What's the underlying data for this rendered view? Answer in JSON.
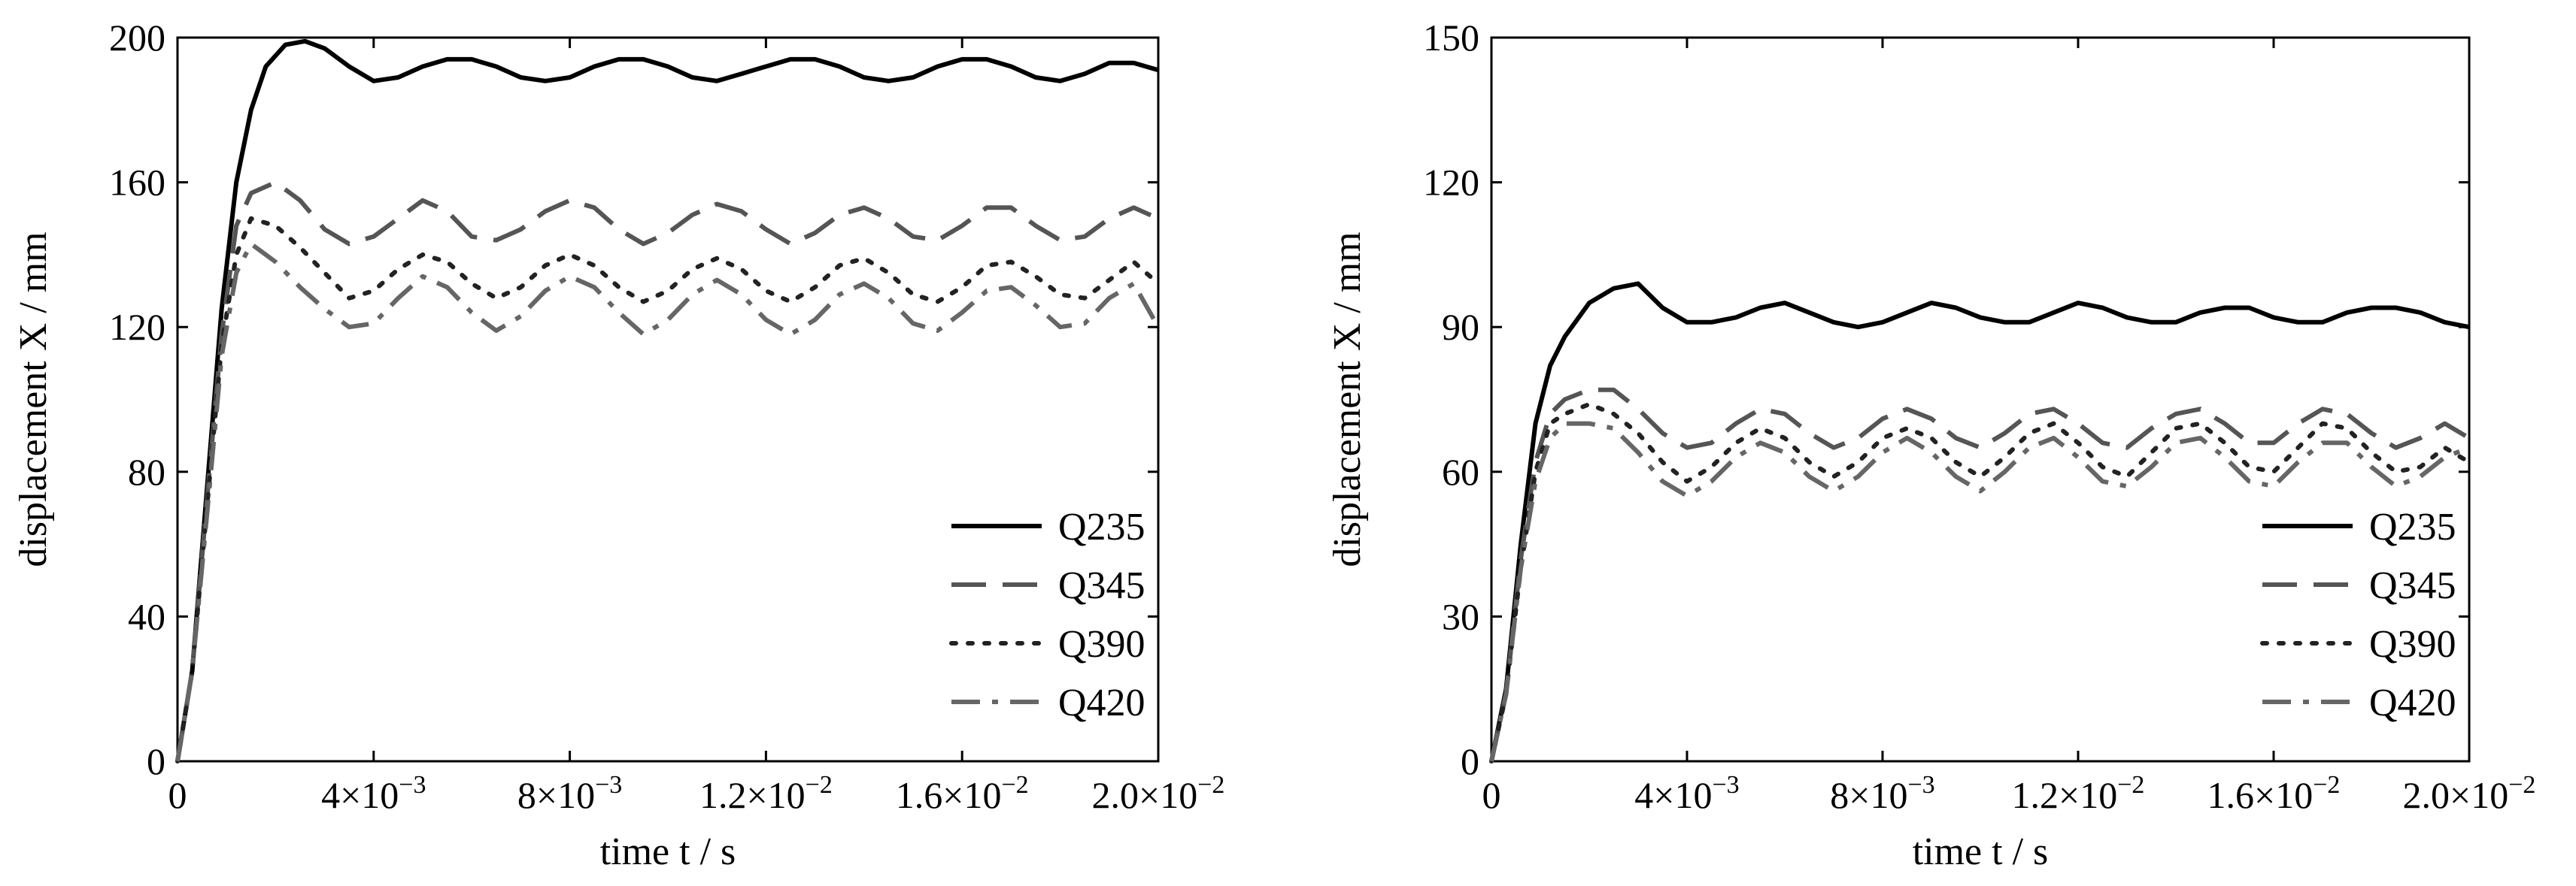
{
  "chart_data": [
    {
      "type": "line",
      "xlabel": "time t / s",
      "ylabel": "displacement X / mm",
      "xlim": [
        0,
        0.02
      ],
      "ylim": [
        0,
        200
      ],
      "x_ticks": [
        0,
        0.004,
        0.008,
        0.012,
        0.016,
        0.02
      ],
      "x_tick_labels": [
        "0",
        "4×10⁻³",
        "8×10⁻³",
        "1.2×10⁻²",
        "1.6×10⁻²",
        "2.0×10⁻²"
      ],
      "y_ticks": [
        0,
        40,
        80,
        120,
        160,
        200
      ],
      "y_tick_labels": [
        "0",
        "40",
        "80",
        "120",
        "160",
        "200"
      ],
      "grid": false,
      "legend_position": "bottom-right",
      "series": [
        {
          "name": "Q235",
          "color": "#000000",
          "style": "solid",
          "x": [
            0,
            0.0003,
            0.0006,
            0.0009,
            0.0012,
            0.0015,
            0.0018,
            0.0022,
            0.0026,
            0.003,
            0.0035,
            0.004,
            0.0045,
            0.005,
            0.0055,
            0.006,
            0.0065,
            0.007,
            0.0075,
            0.008,
            0.0085,
            0.009,
            0.0095,
            0.01,
            0.0105,
            0.011,
            0.0115,
            0.012,
            0.0125,
            0.013,
            0.0135,
            0.014,
            0.0145,
            0.015,
            0.0155,
            0.016,
            0.0165,
            0.017,
            0.0175,
            0.018,
            0.0185,
            0.019,
            0.0195,
            0.02
          ],
          "y": [
            0,
            25,
            75,
            125,
            160,
            180,
            192,
            198,
            199,
            197,
            192,
            188,
            189,
            192,
            194,
            194,
            192,
            189,
            188,
            189,
            192,
            194,
            194,
            192,
            189,
            188,
            190,
            192,
            194,
            194,
            192,
            189,
            188,
            189,
            192,
            194,
            194,
            192,
            189,
            188,
            190,
            193,
            193,
            191
          ]
        },
        {
          "name": "Q345",
          "color": "#555555",
          "style": "dashed",
          "x": [
            0,
            0.0003,
            0.0006,
            0.0009,
            0.0012,
            0.0015,
            0.002,
            0.0025,
            0.003,
            0.0035,
            0.004,
            0.0045,
            0.005,
            0.0055,
            0.006,
            0.0065,
            0.007,
            0.0075,
            0.008,
            0.0085,
            0.009,
            0.0095,
            0.01,
            0.0105,
            0.011,
            0.0115,
            0.012,
            0.0125,
            0.013,
            0.0135,
            0.014,
            0.0145,
            0.015,
            0.0155,
            0.016,
            0.0165,
            0.017,
            0.0175,
            0.018,
            0.0185,
            0.019,
            0.0195,
            0.02
          ],
          "y": [
            0,
            25,
            72,
            118,
            148,
            157,
            160,
            155,
            147,
            143,
            145,
            150,
            155,
            152,
            145,
            144,
            147,
            152,
            155,
            153,
            147,
            143,
            146,
            151,
            154,
            152,
            147,
            143,
            146,
            151,
            153,
            150,
            145,
            144,
            148,
            153,
            153,
            148,
            144,
            145,
            150,
            153,
            150
          ]
        },
        {
          "name": "Q390",
          "color": "#222222",
          "style": "dotted",
          "x": [
            0,
            0.0003,
            0.0006,
            0.0009,
            0.0012,
            0.0015,
            0.002,
            0.0025,
            0.003,
            0.0035,
            0.004,
            0.0045,
            0.005,
            0.0055,
            0.006,
            0.0065,
            0.007,
            0.0075,
            0.008,
            0.0085,
            0.009,
            0.0095,
            0.01,
            0.0105,
            0.011,
            0.0115,
            0.012,
            0.0125,
            0.013,
            0.0135,
            0.014,
            0.0145,
            0.015,
            0.0155,
            0.016,
            0.0165,
            0.017,
            0.0175,
            0.018,
            0.0185,
            0.019,
            0.0195,
            0.02
          ],
          "y": [
            0,
            25,
            70,
            115,
            140,
            150,
            148,
            142,
            135,
            128,
            130,
            136,
            140,
            138,
            132,
            128,
            131,
            137,
            140,
            137,
            131,
            127,
            130,
            136,
            139,
            136,
            130,
            127,
            131,
            137,
            139,
            135,
            129,
            127,
            131,
            137,
            138,
            134,
            129,
            128,
            133,
            138,
            132
          ]
        },
        {
          "name": "Q420",
          "color": "#666666",
          "style": "dashdot",
          "x": [
            0,
            0.0003,
            0.0006,
            0.0009,
            0.0012,
            0.0015,
            0.002,
            0.0025,
            0.003,
            0.0035,
            0.004,
            0.0045,
            0.005,
            0.0055,
            0.006,
            0.0065,
            0.007,
            0.0075,
            0.008,
            0.0085,
            0.009,
            0.0095,
            0.01,
            0.0105,
            0.011,
            0.0115,
            0.012,
            0.0125,
            0.013,
            0.0135,
            0.014,
            0.0145,
            0.015,
            0.0155,
            0.016,
            0.0165,
            0.017,
            0.0175,
            0.018,
            0.0185,
            0.019,
            0.0195,
            0.02
          ],
          "y": [
            0,
            25,
            68,
            112,
            135,
            143,
            138,
            131,
            125,
            120,
            121,
            128,
            134,
            131,
            124,
            119,
            123,
            130,
            134,
            131,
            124,
            118,
            122,
            129,
            133,
            129,
            122,
            118,
            122,
            129,
            132,
            128,
            121,
            119,
            124,
            130,
            131,
            126,
            120,
            121,
            128,
            132,
            120
          ]
        }
      ]
    },
    {
      "type": "line",
      "xlabel": "time t / s",
      "ylabel": "displacement X / mm",
      "xlim": [
        0,
        0.02
      ],
      "ylim": [
        0,
        150
      ],
      "x_ticks": [
        0,
        0.004,
        0.008,
        0.012,
        0.016,
        0.02
      ],
      "x_tick_labels": [
        "0",
        "4×10⁻³",
        "8×10⁻³",
        "1.2×10⁻²",
        "1.6×10⁻²",
        "2.0×10⁻²"
      ],
      "y_ticks": [
        0,
        30,
        60,
        90,
        120,
        150
      ],
      "y_tick_labels": [
        "0",
        "30",
        "60",
        "90",
        "120",
        "150"
      ],
      "grid": false,
      "legend_position": "bottom-right",
      "series": [
        {
          "name": "Q235",
          "color": "#000000",
          "style": "solid",
          "x": [
            0,
            0.0003,
            0.0006,
            0.0009,
            0.0012,
            0.0015,
            0.002,
            0.0025,
            0.003,
            0.0035,
            0.004,
            0.0045,
            0.005,
            0.0055,
            0.006,
            0.0065,
            0.007,
            0.0075,
            0.008,
            0.0085,
            0.009,
            0.0095,
            0.01,
            0.0105,
            0.011,
            0.0115,
            0.012,
            0.0125,
            0.013,
            0.0135,
            0.014,
            0.0145,
            0.015,
            0.0155,
            0.016,
            0.0165,
            0.017,
            0.0175,
            0.018,
            0.0185,
            0.019,
            0.0195,
            0.02
          ],
          "y": [
            0,
            15,
            45,
            70,
            82,
            88,
            95,
            98,
            99,
            94,
            91,
            91,
            92,
            94,
            95,
            93,
            91,
            90,
            91,
            93,
            95,
            94,
            92,
            91,
            91,
            93,
            95,
            94,
            92,
            91,
            91,
            93,
            94,
            94,
            92,
            91,
            91,
            93,
            94,
            94,
            93,
            91,
            90
          ]
        },
        {
          "name": "Q345",
          "color": "#555555",
          "style": "dashed",
          "x": [
            0,
            0.0003,
            0.0006,
            0.0009,
            0.0012,
            0.0015,
            0.002,
            0.0025,
            0.003,
            0.0035,
            0.004,
            0.0045,
            0.005,
            0.0055,
            0.006,
            0.0065,
            0.007,
            0.0075,
            0.008,
            0.0085,
            0.009,
            0.0095,
            0.01,
            0.0105,
            0.011,
            0.0115,
            0.012,
            0.0125,
            0.013,
            0.0135,
            0.014,
            0.0145,
            0.015,
            0.0155,
            0.016,
            0.0165,
            0.017,
            0.0175,
            0.018,
            0.0185,
            0.019,
            0.0195,
            0.02
          ],
          "y": [
            0,
            14,
            42,
            62,
            72,
            75,
            77,
            77,
            73,
            68,
            65,
            66,
            70,
            73,
            72,
            68,
            65,
            67,
            71,
            73,
            71,
            67,
            65,
            68,
            72,
            73,
            70,
            66,
            65,
            69,
            72,
            73,
            70,
            66,
            66,
            70,
            73,
            72,
            68,
            65,
            67,
            70,
            67
          ]
        },
        {
          "name": "Q390",
          "color": "#222222",
          "style": "dotted",
          "x": [
            0,
            0.0003,
            0.0006,
            0.0009,
            0.0012,
            0.0015,
            0.002,
            0.0025,
            0.003,
            0.0035,
            0.004,
            0.0045,
            0.005,
            0.0055,
            0.006,
            0.0065,
            0.007,
            0.0075,
            0.008,
            0.0085,
            0.009,
            0.0095,
            0.01,
            0.0105,
            0.011,
            0.0115,
            0.012,
            0.0125,
            0.013,
            0.0135,
            0.014,
            0.0145,
            0.015,
            0.0155,
            0.016,
            0.0165,
            0.017,
            0.0175,
            0.018,
            0.0185,
            0.019,
            0.0195,
            0.02
          ],
          "y": [
            0,
            14,
            40,
            60,
            70,
            72,
            74,
            72,
            68,
            62,
            58,
            61,
            66,
            69,
            67,
            62,
            59,
            62,
            67,
            69,
            67,
            62,
            59,
            63,
            68,
            70,
            66,
            61,
            59,
            64,
            69,
            70,
            66,
            61,
            60,
            65,
            70,
            69,
            64,
            60,
            61,
            65,
            62
          ]
        },
        {
          "name": "Q420",
          "color": "#666666",
          "style": "dashdot",
          "x": [
            0,
            0.0003,
            0.0006,
            0.0009,
            0.0012,
            0.0015,
            0.002,
            0.0025,
            0.003,
            0.0035,
            0.004,
            0.0045,
            0.005,
            0.0055,
            0.006,
            0.0065,
            0.007,
            0.0075,
            0.008,
            0.0085,
            0.009,
            0.0095,
            0.01,
            0.0105,
            0.011,
            0.0115,
            0.012,
            0.0125,
            0.013,
            0.0135,
            0.014,
            0.0145,
            0.015,
            0.0155,
            0.016,
            0.0165,
            0.017,
            0.0175,
            0.018,
            0.0185,
            0.019,
            0.0195,
            0.02
          ],
          "y": [
            0,
            14,
            40,
            58,
            67,
            70,
            70,
            69,
            64,
            58,
            55,
            58,
            63,
            66,
            64,
            59,
            56,
            59,
            64,
            67,
            64,
            59,
            56,
            60,
            65,
            67,
            63,
            58,
            57,
            61,
            66,
            67,
            63,
            58,
            57,
            62,
            66,
            66,
            61,
            57,
            59,
            63,
            65
          ]
        }
      ]
    }
  ]
}
